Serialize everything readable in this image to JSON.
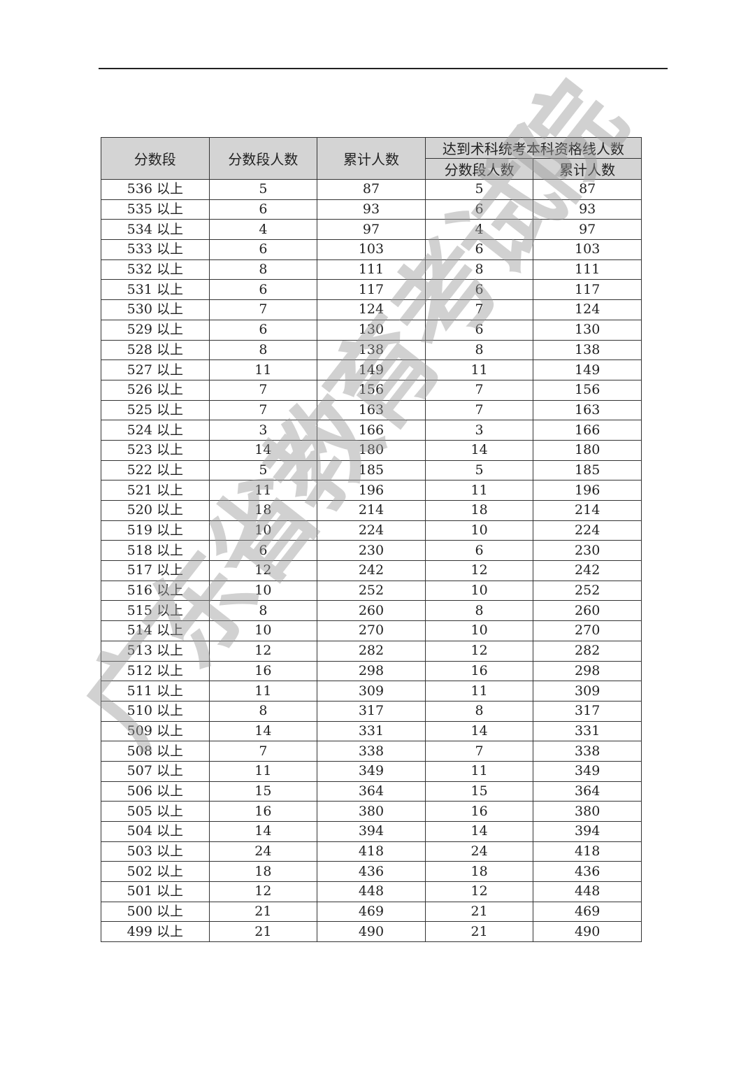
{
  "watermark": "广东省教育考试院",
  "table": {
    "headers": {
      "score_band": "分数段",
      "band_count": "分数段人数",
      "cumulative": "累计人数",
      "group": "达到术科统考本科资格线人数",
      "group_band_count": "分数段人数",
      "group_cumulative": "累计人数"
    },
    "rows": [
      [
        "536 以上",
        "5",
        "87",
        "5",
        "87"
      ],
      [
        "535 以上",
        "6",
        "93",
        "6",
        "93"
      ],
      [
        "534 以上",
        "4",
        "97",
        "4",
        "97"
      ],
      [
        "533 以上",
        "6",
        "103",
        "6",
        "103"
      ],
      [
        "532 以上",
        "8",
        "111",
        "8",
        "111"
      ],
      [
        "531 以上",
        "6",
        "117",
        "6",
        "117"
      ],
      [
        "530 以上",
        "7",
        "124",
        "7",
        "124"
      ],
      [
        "529 以上",
        "6",
        "130",
        "6",
        "130"
      ],
      [
        "528 以上",
        "8",
        "138",
        "8",
        "138"
      ],
      [
        "527 以上",
        "11",
        "149",
        "11",
        "149"
      ],
      [
        "526 以上",
        "7",
        "156",
        "7",
        "156"
      ],
      [
        "525 以上",
        "7",
        "163",
        "7",
        "163"
      ],
      [
        "524 以上",
        "3",
        "166",
        "3",
        "166"
      ],
      [
        "523 以上",
        "14",
        "180",
        "14",
        "180"
      ],
      [
        "522 以上",
        "5",
        "185",
        "5",
        "185"
      ],
      [
        "521 以上",
        "11",
        "196",
        "11",
        "196"
      ],
      [
        "520 以上",
        "18",
        "214",
        "18",
        "214"
      ],
      [
        "519 以上",
        "10",
        "224",
        "10",
        "224"
      ],
      [
        "518 以上",
        "6",
        "230",
        "6",
        "230"
      ],
      [
        "517 以上",
        "12",
        "242",
        "12",
        "242"
      ],
      [
        "516 以上",
        "10",
        "252",
        "10",
        "252"
      ],
      [
        "515 以上",
        "8",
        "260",
        "8",
        "260"
      ],
      [
        "514 以上",
        "10",
        "270",
        "10",
        "270"
      ],
      [
        "513 以上",
        "12",
        "282",
        "12",
        "282"
      ],
      [
        "512 以上",
        "16",
        "298",
        "16",
        "298"
      ],
      [
        "511 以上",
        "11",
        "309",
        "11",
        "309"
      ],
      [
        "510 以上",
        "8",
        "317",
        "8",
        "317"
      ],
      [
        "509 以上",
        "14",
        "331",
        "14",
        "331"
      ],
      [
        "508 以上",
        "7",
        "338",
        "7",
        "338"
      ],
      [
        "507 以上",
        "11",
        "349",
        "11",
        "349"
      ],
      [
        "506 以上",
        "15",
        "364",
        "15",
        "364"
      ],
      [
        "505 以上",
        "16",
        "380",
        "16",
        "380"
      ],
      [
        "504 以上",
        "14",
        "394",
        "14",
        "394"
      ],
      [
        "503 以上",
        "24",
        "418",
        "24",
        "418"
      ],
      [
        "502 以上",
        "18",
        "436",
        "18",
        "436"
      ],
      [
        "501 以上",
        "12",
        "448",
        "12",
        "448"
      ],
      [
        "500 以上",
        "21",
        "469",
        "21",
        "469"
      ],
      [
        "499 以上",
        "21",
        "490",
        "21",
        "490"
      ]
    ]
  }
}
